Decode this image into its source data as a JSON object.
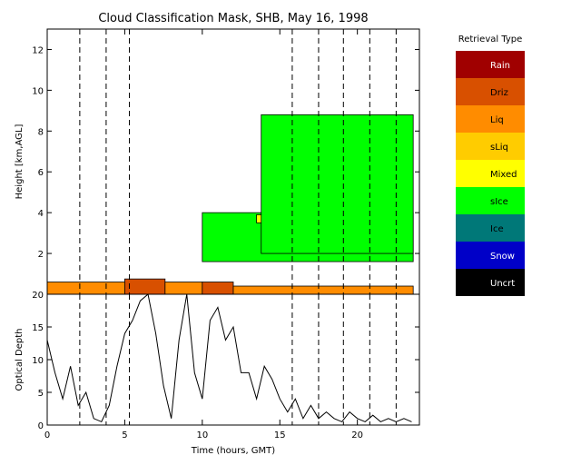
{
  "chart_data": [
    {
      "type": "heatmap",
      "title": "Cloud Classification Mask, SHB, May 16, 1998",
      "ylabel": "Height [km,AGL]",
      "xlim": [
        0,
        24
      ],
      "ylim": [
        0,
        13
      ],
      "yticks": [
        2,
        4,
        6,
        8,
        10,
        12
      ],
      "dashed_time_markers": [
        2.1,
        3.8,
        5.3,
        15.8,
        17.5,
        19.1,
        20.8,
        22.5
      ],
      "legend": {
        "title": "Retrieval Type",
        "placement": "right",
        "items": [
          {
            "label": "Rain",
            "color": "#a00000"
          },
          {
            "label": "Driz",
            "color": "#d85000"
          },
          {
            "label": "Liq",
            "color": "#ff8c00"
          },
          {
            "label": "sLiq",
            "color": "#ffcc00"
          },
          {
            "label": "Mixed",
            "color": "#ffff00"
          },
          {
            "label": "sIce",
            "color": "#00ff00"
          },
          {
            "label": "Ice",
            "color": "#007878"
          },
          {
            "label": "Snow",
            "color": "#0000c8"
          },
          {
            "label": "Uncrt",
            "color": "#000000"
          }
        ]
      },
      "regions": [
        {
          "class": "Liq",
          "note": "low layer",
          "t_start": 0,
          "t_end": 5.0,
          "base_km": 0.0,
          "top_km": 0.6
        },
        {
          "class": "Driz",
          "note": "low layer",
          "t_start": 5.0,
          "t_end": 7.6,
          "base_km": 0.0,
          "top_km": 0.75
        },
        {
          "class": "Liq",
          "note": "low layer",
          "t_start": 7.6,
          "t_end": 10.0,
          "base_km": 0.0,
          "top_km": 0.6
        },
        {
          "class": "Driz",
          "note": "low layer",
          "t_start": 10.0,
          "t_end": 12.0,
          "base_km": 0.0,
          "top_km": 0.6
        },
        {
          "class": "Liq",
          "note": "low layer",
          "t_start": 12.0,
          "t_end": 23.6,
          "base_km": 0.0,
          "top_km": 0.4
        },
        {
          "class": "sIce",
          "note": "mid-level layer",
          "t_start": 10.0,
          "t_end": 23.6,
          "base_km": 1.6,
          "top_km": 4.0
        },
        {
          "class": "Mixed",
          "note": "mid-level layer top",
          "t_start": 13.5,
          "t_end": 17.5,
          "base_km": 3.5,
          "top_km": 3.9
        },
        {
          "class": "sIce",
          "note": "upper layer",
          "t_start": 13.8,
          "t_end": 23.6,
          "base_km": 2.0,
          "top_km": 8.8
        }
      ]
    },
    {
      "type": "line",
      "ylabel": "Optical Depth",
      "xlabel": "Time (hours, GMT)",
      "xlim": [
        0,
        24
      ],
      "ylim": [
        0,
        20
      ],
      "xticks": [
        0,
        5,
        10,
        15,
        20
      ],
      "yticks": [
        0,
        5,
        10,
        15,
        20
      ],
      "series": [
        {
          "x": [
            0,
            0.5,
            1,
            1.5,
            2,
            2.5,
            3,
            3.5,
            4,
            4.5,
            5,
            5.5,
            6,
            6.5,
            7,
            7.5,
            8,
            8.5,
            9,
            9.5,
            10,
            10.5,
            11,
            11.5,
            12,
            12.5,
            13,
            13.5,
            14,
            14.5,
            15,
            15.5,
            16,
            16.5,
            17,
            17.5,
            18,
            18.5,
            19,
            19.5,
            20,
            20.5,
            21,
            21.5,
            22,
            22.5,
            23,
            23.5
          ],
          "y": [
            13,
            8,
            4,
            9,
            3,
            5,
            1,
            0.5,
            3,
            9,
            14,
            16,
            19,
            20,
            14,
            6,
            1,
            13,
            20,
            8,
            4,
            16,
            18,
            13,
            15,
            8,
            8,
            4,
            9,
            7,
            4,
            2,
            4,
            1,
            3,
            1,
            2,
            1,
            0.5,
            2,
            1,
            0.5,
            1.5,
            0.5,
            1,
            0.5,
            1,
            0.5
          ]
        }
      ]
    }
  ]
}
